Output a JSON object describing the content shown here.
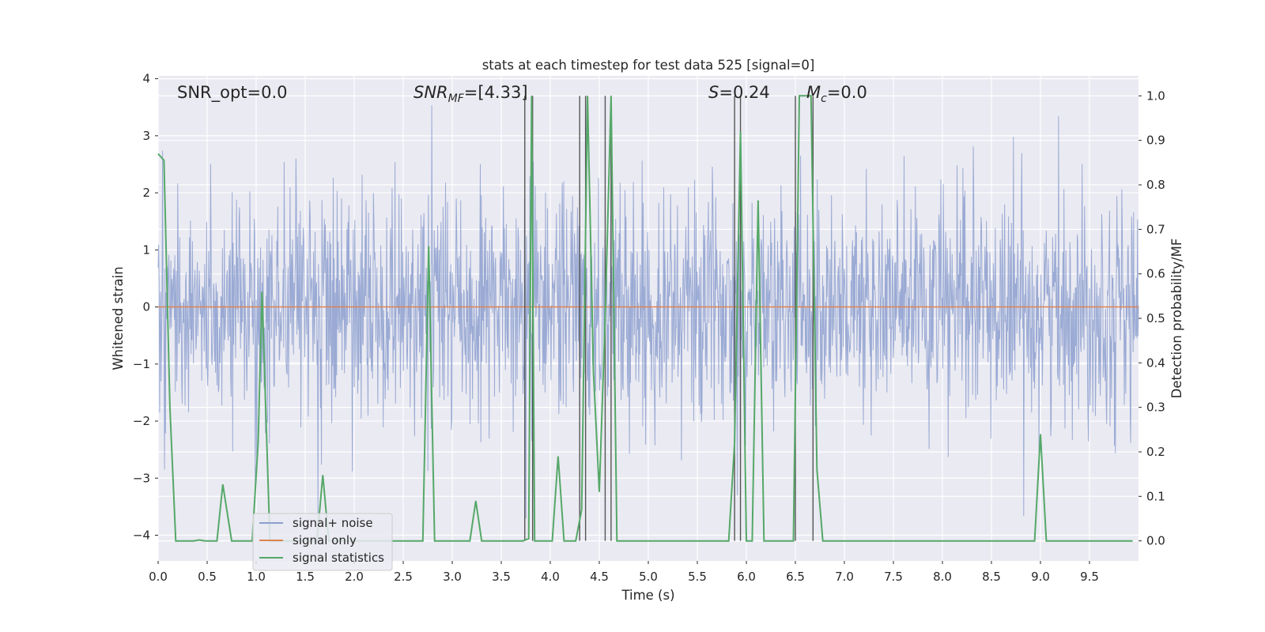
{
  "chart_data": {
    "type": "line",
    "title": "stats at each timestep for test data 525 [signal=0]",
    "xlabel": "Time (s)",
    "ylabel": "Whitened strain",
    "y2label": "Detection probability/MF",
    "xlim": [
      0.0,
      10.0
    ],
    "ylim": [
      -4.45,
      4.05
    ],
    "y2lim": [
      -0.045,
      1.045
    ],
    "x_ticks": [
      "0.0",
      "0.5",
      "1.0",
      "1.5",
      "2.0",
      "2.5",
      "3.0",
      "3.5",
      "4.0",
      "4.5",
      "5.0",
      "5.5",
      "6.0",
      "6.5",
      "7.0",
      "7.5",
      "8.0",
      "8.5",
      "9.0",
      "9.5"
    ],
    "y_ticks": [
      "4",
      "3",
      "2",
      "1",
      "0",
      "−1",
      "−2",
      "−3",
      "−4"
    ],
    "y2_ticks": [
      "1.0",
      "0.9",
      "0.8",
      "0.7",
      "0.6",
      "0.5",
      "0.4",
      "0.3",
      "0.2",
      "0.1",
      "0.0"
    ],
    "grid": true,
    "legend_position": "lower-left",
    "annotations": {
      "snr_opt": "SNR_opt=0.0",
      "snr_mf_main": "SNR",
      "snr_mf_sub": "MF",
      "snr_mf_value": "=[4.33]",
      "s_symbol": "S",
      "s_value": "=0.24",
      "mc_main": "M",
      "mc_sub": "c",
      "mc_value": "=0.0"
    },
    "series": [
      {
        "name": "signal+ noise",
        "color": "#8c9fcf",
        "note": "dense whitened noise, roughly within ±2.5, peaks to about ±3.8"
      },
      {
        "name": "signal only",
        "color": "#dd8452",
        "x": [
          0.0,
          10.0
        ],
        "y": [
          0.0,
          0.0
        ]
      },
      {
        "name": "signal statistics",
        "color": "#55a868",
        "axis": "right",
        "x": [
          0.0,
          0.06,
          0.12,
          0.18,
          0.3,
          0.36,
          0.42,
          0.48,
          0.6,
          0.66,
          0.75,
          0.96,
          1.02,
          1.06,
          1.14,
          1.56,
          1.62,
          1.68,
          1.74,
          1.8,
          2.7,
          2.76,
          2.82,
          3.18,
          3.24,
          3.3,
          3.72,
          3.78,
          3.81,
          3.84,
          3.9,
          3.96,
          4.02,
          4.08,
          4.14,
          4.26,
          4.32,
          4.38,
          4.44,
          4.5,
          4.56,
          4.62,
          4.68,
          4.74,
          5.82,
          5.88,
          5.94,
          6.0,
          6.06,
          6.12,
          6.18,
          6.42,
          6.48,
          6.54,
          6.6,
          6.66,
          6.72,
          6.78,
          7.5,
          8.94,
          9.0,
          9.06,
          9.94
        ],
        "y": [
          0.87,
          0.855,
          0.3,
          0.0,
          0.0,
          0.0,
          0.002,
          0.0,
          0.0,
          0.127,
          0.0,
          0.0,
          0.22,
          0.56,
          0.0,
          0.0,
          0.0,
          0.148,
          0.0,
          0.0,
          0.0,
          0.662,
          0.0,
          0.0,
          0.09,
          0.0,
          0.0,
          0.005,
          1.0,
          0.0,
          0.0,
          0.0,
          0.0,
          0.19,
          0.0,
          0.0,
          0.07,
          1.0,
          0.38,
          0.11,
          0.5,
          1.0,
          0.0,
          0.0,
          0.0,
          0.22,
          0.92,
          0.0,
          0.0,
          0.765,
          0.0,
          0.0,
          0.0,
          1.0,
          1.0,
          1.0,
          0.16,
          0.0,
          0.0,
          0.0,
          0.24,
          0.0,
          0.0
        ]
      }
    ],
    "vertical_lines": [
      3.74,
      3.82,
      4.3,
      4.36,
      4.56,
      4.62,
      5.88,
      5.94,
      6.5,
      6.68
    ]
  }
}
